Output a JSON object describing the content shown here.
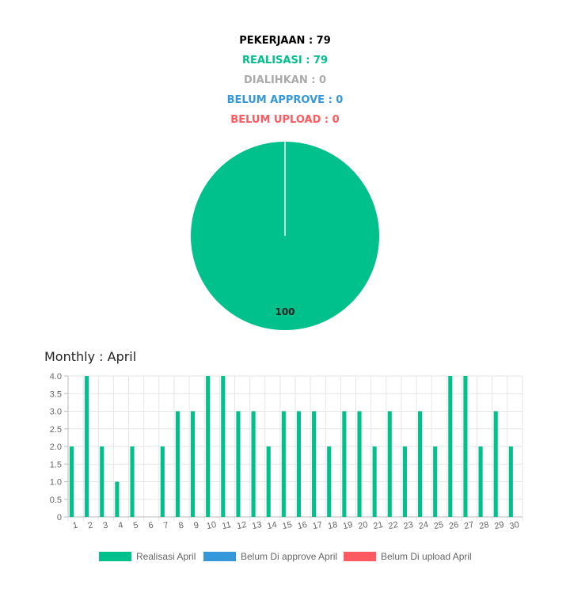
{
  "summary": {
    "pekerjaan": "PEKERJAAN : 79",
    "realisasi": "REALISASI : 79",
    "dialihkan": "DIALIHKAN : 0",
    "belum_approve": "BELUM APPROVE : 0",
    "belum_upload": "BELUM UPLOAD : 0"
  },
  "colors": {
    "pekerjaan": "#000000",
    "realisasi": "#00c08b",
    "dialihkan": "#aaaaaa",
    "belum_approve": "#3498db",
    "belum_upload": "#ff5a5f"
  },
  "monthly": {
    "title": "Monthly : April"
  },
  "chart_data": [
    {
      "type": "pie",
      "slices": [
        {
          "label": "",
          "value": 100,
          "color": "#00c08b"
        }
      ],
      "data_labels": [
        "100"
      ]
    },
    {
      "type": "bar",
      "title": "Monthly : April",
      "categories": [
        "1",
        "2",
        "3",
        "4",
        "5",
        "6",
        "7",
        "8",
        "9",
        "10",
        "11",
        "12",
        "13",
        "14",
        "15",
        "16",
        "17",
        "18",
        "19",
        "20",
        "21",
        "22",
        "23",
        "24",
        "25",
        "26",
        "27",
        "28",
        "29",
        "30"
      ],
      "series": [
        {
          "name": "Realisasi April",
          "color": "#00c08b",
          "values": [
            2,
            4,
            2,
            1,
            2,
            0,
            2,
            3,
            3,
            4,
            4,
            3,
            3,
            2,
            3,
            3,
            3,
            2,
            3,
            3,
            2,
            3,
            2,
            3,
            2,
            4,
            4,
            2,
            3,
            2
          ]
        },
        {
          "name": "Belum Di approve April",
          "color": "#3498db",
          "values": [
            0,
            0,
            0,
            0,
            0,
            0,
            0,
            0,
            0,
            0,
            0,
            0,
            0,
            0,
            0,
            0,
            0,
            0,
            0,
            0,
            0,
            0,
            0,
            0,
            0,
            0,
            0,
            0,
            0,
            0
          ]
        },
        {
          "name": "Belum Di upload April",
          "color": "#ff5a5f",
          "values": [
            0,
            0,
            0,
            0,
            0,
            0,
            0,
            0,
            0,
            0,
            0,
            0,
            0,
            0,
            0,
            0,
            0,
            0,
            0,
            0,
            0,
            0,
            0,
            0,
            0,
            0,
            0,
            0,
            0,
            0
          ]
        }
      ],
      "ylim": [
        0,
        4
      ],
      "yticks": [
        "0",
        "0.5",
        "1.0",
        "1.5",
        "2.0",
        "2.5",
        "3.0",
        "3.5",
        "4.0"
      ],
      "grid": true,
      "legend": "bottom"
    }
  ]
}
